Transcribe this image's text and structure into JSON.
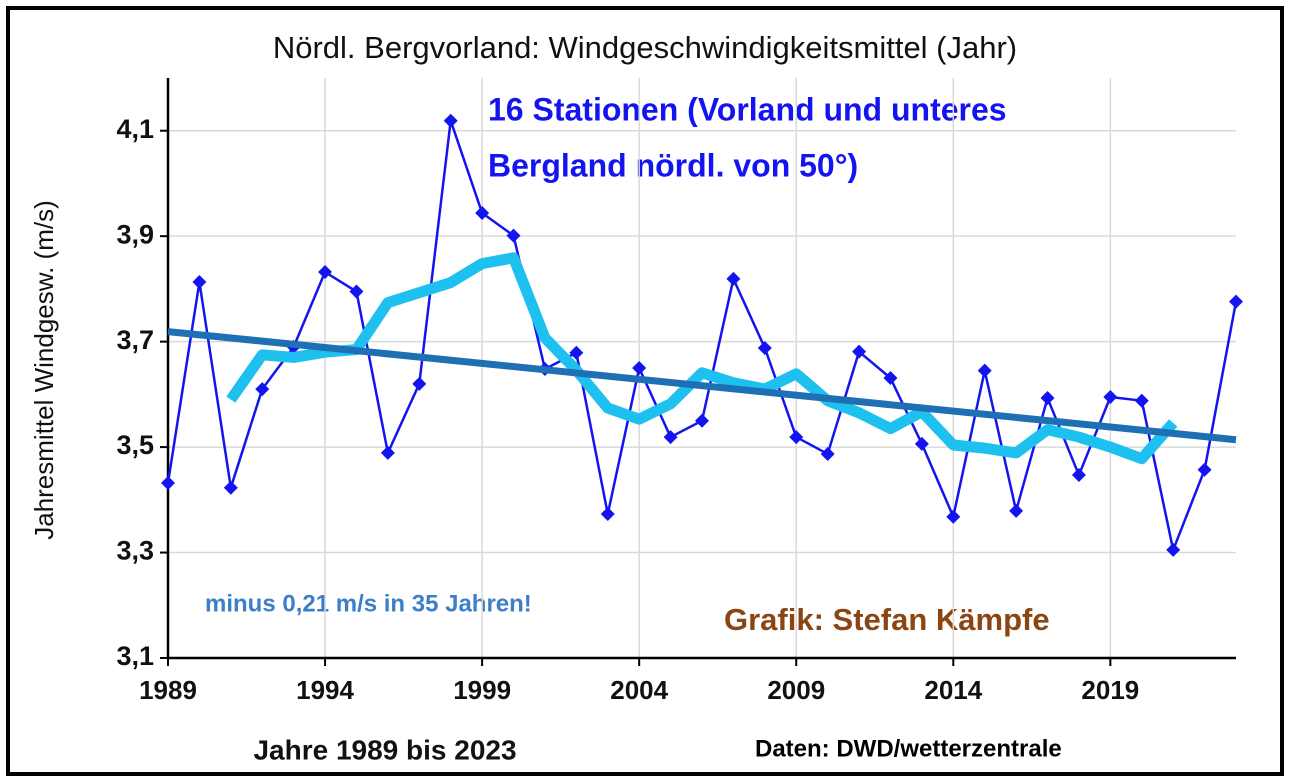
{
  "chart_data": {
    "type": "line",
    "title": "Nördl. Bergvorland: Windgeschwindigkeitsmittel (Jahr)",
    "xlabel": "Jahre 1989 bis 2023",
    "ylabel": "Jahresmittel Windgesw. (m/s)",
    "annotations": [
      "16 Stationen (Vorland und unteres",
      "Bergland nördl. von 50°)",
      "minus 0,21 m/s in 35 Jahren!",
      "Grafik: Stefan Kämpfe",
      "Daten: DWD/wetterzentrale"
    ],
    "x": [
      1989,
      1990,
      1991,
      1992,
      1993,
      1994,
      1995,
      1996,
      1997,
      1998,
      1999,
      2000,
      2001,
      2002,
      2003,
      2004,
      2005,
      2006,
      2007,
      2008,
      2009,
      2010,
      2011,
      2012,
      2013,
      2014,
      2015,
      2016,
      2017,
      2018,
      2019,
      2020,
      2021,
      2022,
      2023
    ],
    "series": [
      {
        "color": "#1414f0",
        "marker": "diamond",
        "values": [
          3.432,
          3.813,
          3.423,
          3.61,
          3.69,
          3.832,
          3.795,
          3.489,
          3.62,
          4.119,
          3.944,
          3.901,
          3.648,
          3.679,
          3.373,
          3.65,
          3.519,
          3.55,
          3.819,
          3.688,
          3.519,
          3.487,
          3.681,
          3.631,
          3.506,
          3.368,
          3.645,
          3.379,
          3.593,
          3.447,
          3.595,
          3.588,
          3.305,
          3.457,
          3.776
        ]
      },
      {
        "color": "#1ec0f0",
        "values": [
          null,
          null,
          3.59,
          3.675,
          3.67,
          3.68,
          3.685,
          3.774,
          3.793,
          3.812,
          3.848,
          3.859,
          3.707,
          3.646,
          3.574,
          3.553,
          3.582,
          3.641,
          3.622,
          3.61,
          3.639,
          3.588,
          3.565,
          3.535,
          3.567,
          3.504,
          3.498,
          3.489,
          3.533,
          3.519,
          3.5,
          3.478,
          3.546,
          null,
          null
        ]
      },
      {
        "color": "#1f6fb4",
        "x": [
          1989,
          2023
        ],
        "values": [
          3.719,
          3.514
        ]
      }
    ],
    "xlim": [
      1989,
      2023
    ],
    "xticks": [
      1989,
      1994,
      1999,
      2004,
      2009,
      2014,
      2019
    ],
    "ylim": [
      3.1,
      4.2
    ],
    "yticks": [
      {
        "value": 3.1,
        "label": "3,1"
      },
      {
        "value": 3.3,
        "label": "3,3"
      },
      {
        "value": 3.5,
        "label": "3,5"
      },
      {
        "value": 3.7,
        "label": "3,7"
      },
      {
        "value": 3.9,
        "label": "3,9"
      },
      {
        "value": 4.1,
        "label": "4,1"
      }
    ],
    "grid": true
  }
}
